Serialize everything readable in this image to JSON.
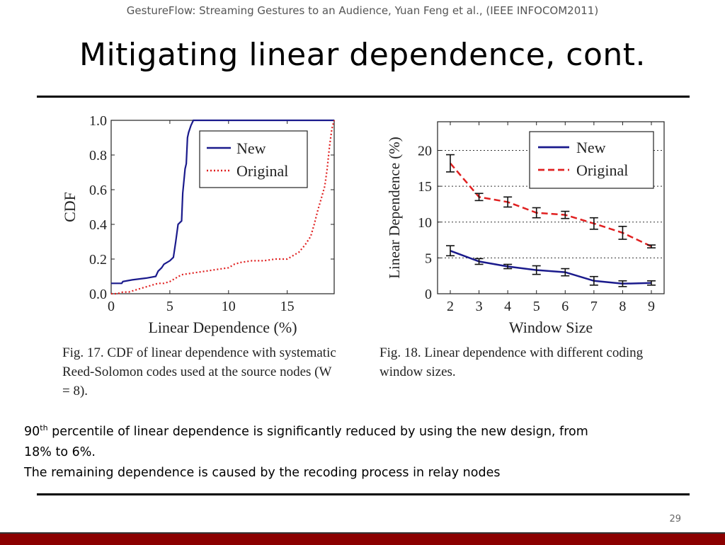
{
  "slide": {
    "header": "GestureFlow: Streaming Gestures to an Audience, Yuan Feng et al., (IEEE INFOCOM2011)",
    "title": "Mitigating linear dependence, cont.",
    "body": {
      "line1_prefix": "90",
      "line1_sup": "th",
      "line1_rest": " percentile of linear dependence is significantly reduced by using the new design, from 18% to 6%.",
      "line2": "The remaining dependence is caused by the recoding process in relay nodes"
    },
    "page_number": "29"
  },
  "chart_data": [
    {
      "type": "line",
      "figure": "fig17",
      "xlabel": "Linear Dependence (%)",
      "ylabel": "CDF",
      "xlim": [
        0,
        19
      ],
      "ylim": [
        0,
        1
      ],
      "xticks": [
        "0",
        "5",
        "10",
        "15"
      ],
      "yticks": [
        "0.0",
        "0.2",
        "0.4",
        "0.6",
        "0.8",
        "1.0"
      ],
      "legend_position": "top-right",
      "caption": "Fig. 17.   CDF of linear dependence with systematic Reed-Solomon codes used at the source nodes (W = 8).",
      "series": [
        {
          "name": "New",
          "color": "#1a1a8c",
          "style": "solid",
          "x": [
            0,
            0.9,
            1.0,
            1.8,
            3.0,
            3.8,
            4.0,
            4.3,
            4.5,
            5.0,
            5.3,
            5.5,
            5.7,
            6.0,
            6.1,
            6.3,
            6.4,
            6.5,
            6.6,
            6.8,
            7.0,
            7.2,
            19
          ],
          "y": [
            0.06,
            0.06,
            0.07,
            0.08,
            0.09,
            0.1,
            0.13,
            0.15,
            0.17,
            0.19,
            0.21,
            0.3,
            0.4,
            0.42,
            0.58,
            0.72,
            0.75,
            0.9,
            0.93,
            0.97,
            1.0,
            1.0,
            1.0
          ]
        },
        {
          "name": "Original",
          "color": "#e02020",
          "style": "dotted",
          "x": [
            0,
            0.5,
            1.0,
            1.5,
            2.0,
            2.5,
            3.0,
            3.5,
            4.0,
            4.5,
            5.0,
            5.5,
            6.0,
            7.0,
            8.0,
            9.0,
            10.0,
            10.5,
            11.0,
            12.0,
            13.0,
            14.0,
            15.0,
            15.5,
            16.0,
            16.5,
            17.0,
            17.3,
            17.6,
            17.9,
            18.2,
            18.4,
            18.6,
            18.8,
            19.0
          ],
          "y": [
            0.0,
            0.0,
            0.01,
            0.01,
            0.02,
            0.03,
            0.04,
            0.05,
            0.06,
            0.06,
            0.07,
            0.09,
            0.11,
            0.12,
            0.13,
            0.14,
            0.15,
            0.17,
            0.18,
            0.19,
            0.19,
            0.2,
            0.2,
            0.22,
            0.24,
            0.28,
            0.33,
            0.4,
            0.48,
            0.55,
            0.62,
            0.72,
            0.85,
            0.95,
            1.0
          ]
        }
      ]
    },
    {
      "type": "line",
      "figure": "fig18",
      "xlabel": "Window Size",
      "ylabel": "Linear Dependence (%)",
      "xlim": [
        2,
        9
      ],
      "ylim": [
        0,
        24
      ],
      "xticks": [
        "2",
        "3",
        "4",
        "5",
        "6",
        "7",
        "8",
        "9"
      ],
      "yticks": [
        "0",
        "5",
        "10",
        "15",
        "20"
      ],
      "grid": "horizontal dotted at 5,10,15,20",
      "legend_position": "top-right",
      "caption": "Fig. 18.     Linear dependence with different coding window sizes.",
      "series": [
        {
          "name": "New",
          "color": "#1a1a8c",
          "style": "solid",
          "x": [
            2,
            3,
            4,
            5,
            6,
            7,
            8,
            9
          ],
          "y": [
            6.0,
            4.5,
            3.8,
            3.3,
            3.0,
            1.8,
            1.4,
            1.5
          ],
          "err": [
            0.7,
            0.4,
            0.3,
            0.6,
            0.5,
            0.6,
            0.4,
            0.3
          ]
        },
        {
          "name": "Original",
          "color": "#e02020",
          "style": "dashed",
          "x": [
            2,
            3,
            4,
            5,
            6,
            7,
            8,
            9
          ],
          "y": [
            18.2,
            13.5,
            12.8,
            11.3,
            11.0,
            9.8,
            8.5,
            6.6
          ],
          "err": [
            1.2,
            0.5,
            0.7,
            0.7,
            0.5,
            0.8,
            0.9,
            0.2
          ]
        }
      ]
    }
  ]
}
